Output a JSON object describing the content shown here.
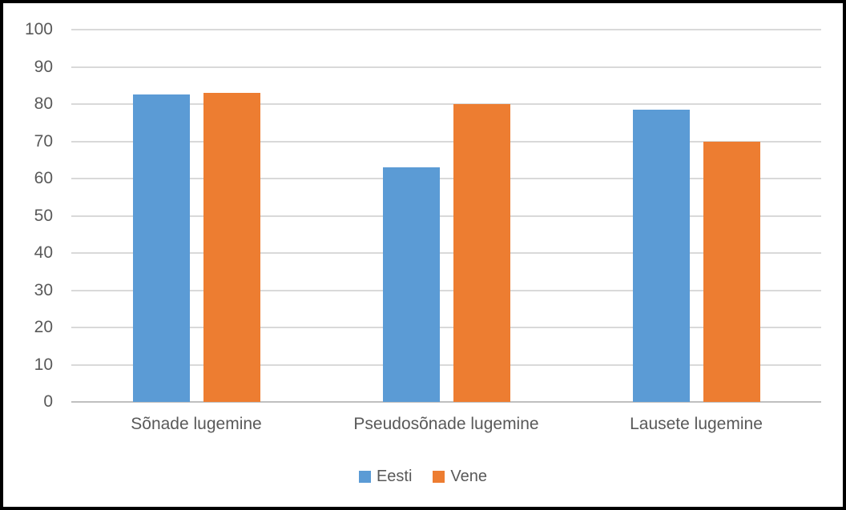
{
  "chart_data": {
    "type": "bar",
    "categories": [
      "Sõnade lugemine",
      "Pseudosõnade lugemine",
      "Lausete lugemine"
    ],
    "series": [
      {
        "name": "Eesti",
        "color": "#5B9BD5",
        "values": [
          82.5,
          63,
          78.5
        ]
      },
      {
        "name": "Vene",
        "color": "#ED7D31",
        "values": [
          83,
          80,
          70
        ]
      }
    ],
    "title": "",
    "xlabel": "",
    "ylabel": "",
    "ylim": [
      0,
      100
    ],
    "yticks": [
      0,
      10,
      20,
      30,
      40,
      50,
      60,
      70,
      80,
      90,
      100
    ],
    "grid": true,
    "legend_position": "bottom"
  },
  "colors": {
    "gridline": "#D9D9D9",
    "axis_line": "#BFBFBF",
    "text": "#595959",
    "background": "#FFFFFF",
    "frame_border": "#000000"
  }
}
